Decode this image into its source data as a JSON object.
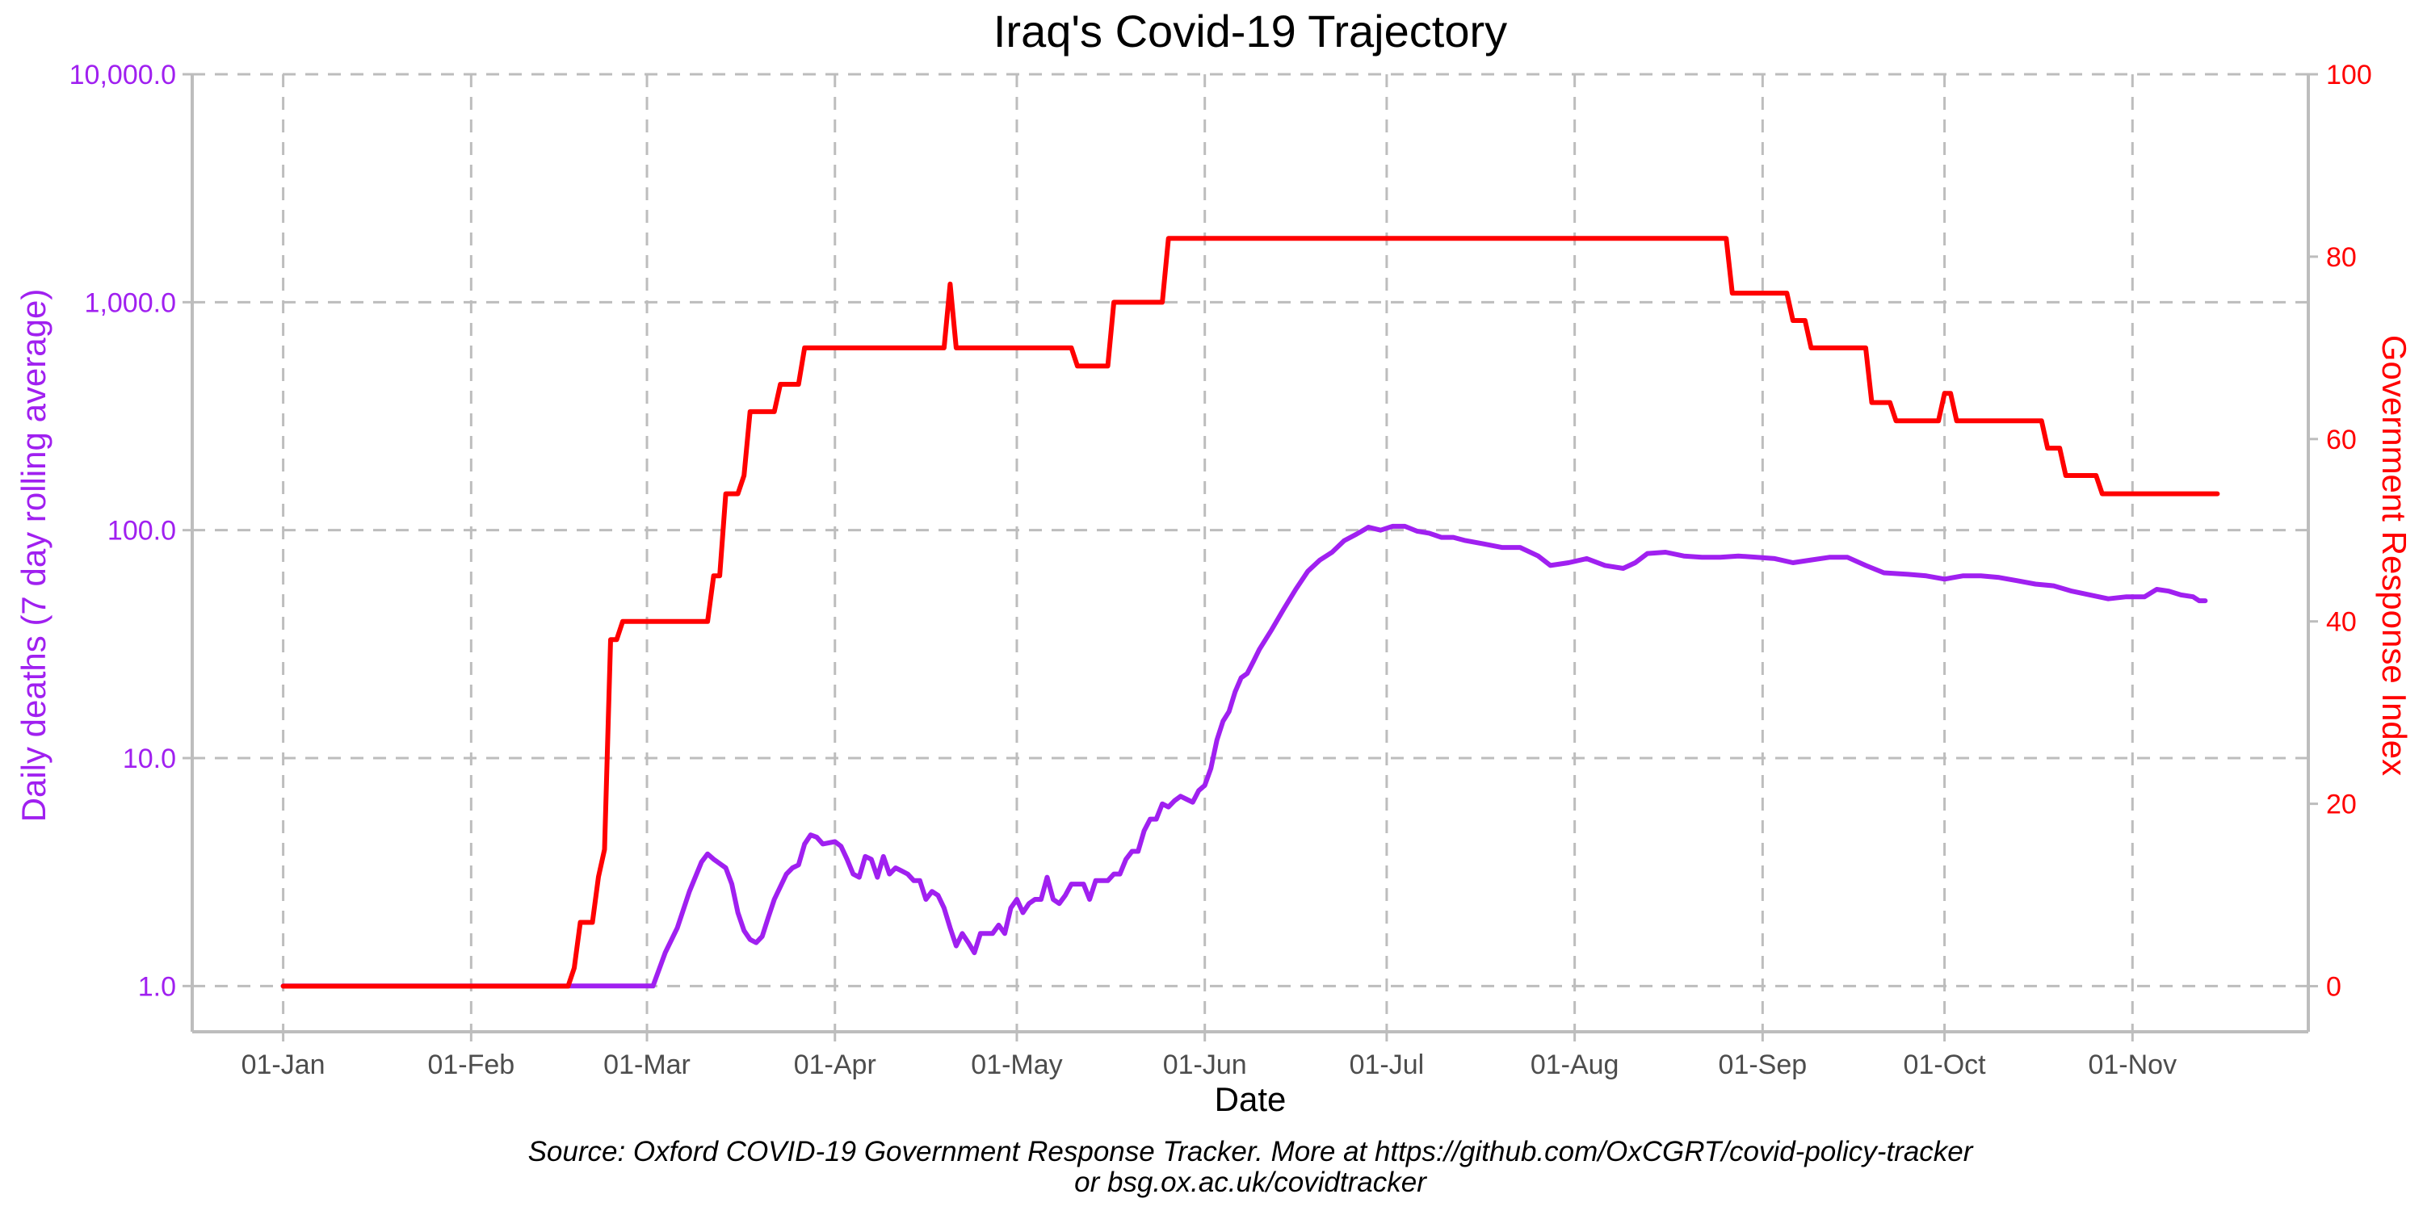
{
  "chart_data": {
    "type": "line",
    "title": "Iraq's Covid-19 Trajectory",
    "xlabel": "Date",
    "ylabel_left": "Daily deaths (7 day rolling average)",
    "ylabel_right": "Government Response Index",
    "x_ticks": [
      "01-Jan",
      "01-Feb",
      "01-Mar",
      "01-Apr",
      "01-May",
      "01-Jun",
      "01-Jul",
      "01-Aug",
      "01-Sep",
      "01-Oct",
      "01-Nov"
    ],
    "x_range": [
      "2019-12-17",
      "2020-11-30"
    ],
    "y_left": {
      "scale": "log10",
      "ticks": [
        "1.0",
        "10.0",
        "100.0",
        "1,000.0",
        "10,000.0"
      ],
      "tick_values": [
        1,
        10,
        100,
        1000,
        10000
      ],
      "range": [
        0.63,
        10000
      ],
      "color": "#a020f0"
    },
    "y_right": {
      "scale": "linear",
      "ticks": [
        "0",
        "20",
        "40",
        "60",
        "80",
        "100"
      ],
      "tick_values": [
        0,
        20,
        40,
        60,
        80,
        100
      ],
      "range": [
        -5,
        100
      ],
      "color": "#ff0000"
    },
    "grid": true,
    "caption_lines": [
      "Source: Oxford COVID-19 Government Response Tracker. More at https://github.com/OxCGRT/covid-policy-tracker",
      "or bsg.ox.ac.uk/covidtracker"
    ],
    "series": [
      {
        "axis": "left",
        "color": "#a020f0",
        "points": [
          [
            "2020-01-01",
            1.0
          ],
          [
            "2020-03-02",
            1.0
          ],
          [
            "2020-03-04",
            1.4
          ],
          [
            "2020-03-06",
            1.8
          ],
          [
            "2020-03-08",
            2.6
          ],
          [
            "2020-03-10",
            3.5
          ],
          [
            "2020-03-11",
            3.8
          ],
          [
            "2020-03-12",
            3.6
          ],
          [
            "2020-03-14",
            3.3
          ],
          [
            "2020-03-15",
            2.8
          ],
          [
            "2020-03-16",
            2.1
          ],
          [
            "2020-03-17",
            1.75
          ],
          [
            "2020-03-18",
            1.6
          ],
          [
            "2020-03-19",
            1.55
          ],
          [
            "2020-03-20",
            1.65
          ],
          [
            "2020-03-21",
            2.0
          ],
          [
            "2020-03-22",
            2.4
          ],
          [
            "2020-03-24",
            3.1
          ],
          [
            "2020-03-25",
            3.3
          ],
          [
            "2020-03-26",
            3.4
          ],
          [
            "2020-03-27",
            4.2
          ],
          [
            "2020-03-28",
            4.6
          ],
          [
            "2020-03-29",
            4.5
          ],
          [
            "2020-03-30",
            4.2
          ],
          [
            "2020-04-01",
            4.3
          ],
          [
            "2020-04-02",
            4.1
          ],
          [
            "2020-04-03",
            3.6
          ],
          [
            "2020-04-04",
            3.1
          ],
          [
            "2020-04-05",
            3.0
          ],
          [
            "2020-04-06",
            3.7
          ],
          [
            "2020-04-07",
            3.6
          ],
          [
            "2020-04-08",
            3.0
          ],
          [
            "2020-04-09",
            3.7
          ],
          [
            "2020-04-10",
            3.1
          ],
          [
            "2020-04-11",
            3.3
          ],
          [
            "2020-04-12",
            3.2
          ],
          [
            "2020-04-13",
            3.1
          ],
          [
            "2020-04-14",
            2.9
          ],
          [
            "2020-04-15",
            2.9
          ],
          [
            "2020-04-16",
            2.4
          ],
          [
            "2020-04-17",
            2.6
          ],
          [
            "2020-04-18",
            2.5
          ],
          [
            "2020-04-19",
            2.2
          ],
          [
            "2020-04-20",
            1.8
          ],
          [
            "2020-04-21",
            1.5
          ],
          [
            "2020-04-22",
            1.7
          ],
          [
            "2020-04-23",
            1.55
          ],
          [
            "2020-04-24",
            1.4
          ],
          [
            "2020-04-25",
            1.7
          ],
          [
            "2020-04-26",
            1.7
          ],
          [
            "2020-04-27",
            1.7
          ],
          [
            "2020-04-28",
            1.85
          ],
          [
            "2020-04-29",
            1.7
          ],
          [
            "2020-04-30",
            2.2
          ],
          [
            "2020-05-01",
            2.4
          ],
          [
            "2020-05-02",
            2.1
          ],
          [
            "2020-05-03",
            2.3
          ],
          [
            "2020-05-04",
            2.4
          ],
          [
            "2020-05-05",
            2.4
          ],
          [
            "2020-05-06",
            3.0
          ],
          [
            "2020-05-07",
            2.4
          ],
          [
            "2020-05-08",
            2.3
          ],
          [
            "2020-05-09",
            2.5
          ],
          [
            "2020-05-10",
            2.8
          ],
          [
            "2020-05-12",
            2.8
          ],
          [
            "2020-05-13",
            2.4
          ],
          [
            "2020-05-14",
            2.9
          ],
          [
            "2020-05-16",
            2.9
          ],
          [
            "2020-05-17",
            3.1
          ],
          [
            "2020-05-18",
            3.1
          ],
          [
            "2020-05-19",
            3.6
          ],
          [
            "2020-05-20",
            3.9
          ],
          [
            "2020-05-21",
            3.9
          ],
          [
            "2020-05-22",
            4.8
          ],
          [
            "2020-05-23",
            5.4
          ],
          [
            "2020-05-24",
            5.4
          ],
          [
            "2020-05-25",
            6.3
          ],
          [
            "2020-05-26",
            6.1
          ],
          [
            "2020-05-27",
            6.5
          ],
          [
            "2020-05-28",
            6.8
          ],
          [
            "2020-05-29",
            6.6
          ],
          [
            "2020-05-30",
            6.4
          ],
          [
            "2020-05-31",
            7.2
          ],
          [
            "2020-06-01",
            7.6
          ],
          [
            "2020-06-02",
            9.0
          ],
          [
            "2020-06-03",
            12.0
          ],
          [
            "2020-06-04",
            14.5
          ],
          [
            "2020-06-05",
            16.0
          ],
          [
            "2020-06-06",
            19.5
          ],
          [
            "2020-06-07",
            22.5
          ],
          [
            "2020-06-08",
            23.5
          ],
          [
            "2020-06-09",
            26.5
          ],
          [
            "2020-06-10",
            30.0
          ],
          [
            "2020-06-12",
            36.5
          ],
          [
            "2020-06-14",
            45.0
          ],
          [
            "2020-06-16",
            55.0
          ],
          [
            "2020-06-18",
            66.0
          ],
          [
            "2020-06-20",
            74.0
          ],
          [
            "2020-06-22",
            80.0
          ],
          [
            "2020-06-24",
            90.0
          ],
          [
            "2020-06-26",
            96.0
          ],
          [
            "2020-06-28",
            103.0
          ],
          [
            "2020-06-30",
            100.0
          ],
          [
            "2020-07-02",
            104.0
          ],
          [
            "2020-07-04",
            104.0
          ],
          [
            "2020-07-06",
            99.0
          ],
          [
            "2020-07-08",
            97.0
          ],
          [
            "2020-07-10",
            93.0
          ],
          [
            "2020-07-12",
            93.0
          ],
          [
            "2020-07-14",
            90.0
          ],
          [
            "2020-07-17",
            87.0
          ],
          [
            "2020-07-20",
            84.0
          ],
          [
            "2020-07-23",
            84.0
          ],
          [
            "2020-07-26",
            77.0
          ],
          [
            "2020-07-28",
            70.0
          ],
          [
            "2020-07-31",
            72.0
          ],
          [
            "2020-08-03",
            75.0
          ],
          [
            "2020-08-06",
            70.0
          ],
          [
            "2020-08-09",
            68.0
          ],
          [
            "2020-08-11",
            72.0
          ],
          [
            "2020-08-13",
            79.0
          ],
          [
            "2020-08-16",
            80.0
          ],
          [
            "2020-08-19",
            77.0
          ],
          [
            "2020-08-22",
            76.0
          ],
          [
            "2020-08-25",
            76.0
          ],
          [
            "2020-08-28",
            77.0
          ],
          [
            "2020-08-31",
            76.0
          ],
          [
            "2020-09-03",
            75.0
          ],
          [
            "2020-09-06",
            72.0
          ],
          [
            "2020-09-09",
            74.0
          ],
          [
            "2020-09-12",
            76.0
          ],
          [
            "2020-09-15",
            76.0
          ],
          [
            "2020-09-18",
            70.0
          ],
          [
            "2020-09-21",
            65.0
          ],
          [
            "2020-09-25",
            64.0
          ],
          [
            "2020-09-28",
            63.0
          ],
          [
            "2020-10-01",
            61.0
          ],
          [
            "2020-10-04",
            63.0
          ],
          [
            "2020-10-07",
            63.0
          ],
          [
            "2020-10-10",
            62.0
          ],
          [
            "2020-10-13",
            60.0
          ],
          [
            "2020-10-16",
            58.0
          ],
          [
            "2020-10-19",
            57.0
          ],
          [
            "2020-10-22",
            54.0
          ],
          [
            "2020-10-25",
            52.0
          ],
          [
            "2020-10-28",
            50.0
          ],
          [
            "2020-10-31",
            51.0
          ],
          [
            "2020-11-03",
            51.0
          ],
          [
            "2020-11-05",
            55.0
          ],
          [
            "2020-11-07",
            54.0
          ],
          [
            "2020-11-09",
            52.0
          ],
          [
            "2020-11-11",
            51.0
          ],
          [
            "2020-11-12",
            49.0
          ],
          [
            "2020-11-13",
            49.0
          ]
        ]
      },
      {
        "axis": "right",
        "color": "#ff0000",
        "points": [
          [
            "2020-01-01",
            0
          ],
          [
            "2020-02-17",
            0
          ],
          [
            "2020-02-18",
            2
          ],
          [
            "2020-02-19",
            7
          ],
          [
            "2020-02-21",
            7
          ],
          [
            "2020-02-22",
            12
          ],
          [
            "2020-02-23",
            15
          ],
          [
            "2020-02-24",
            38
          ],
          [
            "2020-02-25",
            38
          ],
          [
            "2020-02-26",
            40
          ],
          [
            "2020-03-11",
            40
          ],
          [
            "2020-03-12",
            45
          ],
          [
            "2020-03-13",
            45
          ],
          [
            "2020-03-14",
            54
          ],
          [
            "2020-03-16",
            54
          ],
          [
            "2020-03-17",
            56
          ],
          [
            "2020-03-18",
            63
          ],
          [
            "2020-03-22",
            63
          ],
          [
            "2020-03-23",
            66
          ],
          [
            "2020-03-26",
            66
          ],
          [
            "2020-03-27",
            70
          ],
          [
            "2020-04-19",
            70
          ],
          [
            "2020-04-20",
            77
          ],
          [
            "2020-04-21",
            70
          ],
          [
            "2020-05-10",
            70
          ],
          [
            "2020-05-11",
            68
          ],
          [
            "2020-05-16",
            68
          ],
          [
            "2020-05-17",
            75
          ],
          [
            "2020-05-25",
            75
          ],
          [
            "2020-05-26",
            82
          ],
          [
            "2020-08-26",
            82
          ],
          [
            "2020-08-27",
            76
          ],
          [
            "2020-09-05",
            76
          ],
          [
            "2020-09-06",
            73
          ],
          [
            "2020-09-08",
            73
          ],
          [
            "2020-09-09",
            70
          ],
          [
            "2020-09-18",
            70
          ],
          [
            "2020-09-19",
            64
          ],
          [
            "2020-09-22",
            64
          ],
          [
            "2020-09-23",
            62
          ],
          [
            "2020-09-30",
            62
          ],
          [
            "2020-10-01",
            65
          ],
          [
            "2020-10-02",
            65
          ],
          [
            "2020-10-03",
            62
          ],
          [
            "2020-10-17",
            62
          ],
          [
            "2020-10-18",
            59
          ],
          [
            "2020-10-20",
            59
          ],
          [
            "2020-10-21",
            56
          ],
          [
            "2020-10-26",
            56
          ],
          [
            "2020-10-27",
            54
          ],
          [
            "2020-11-15",
            54
          ]
        ]
      }
    ]
  }
}
